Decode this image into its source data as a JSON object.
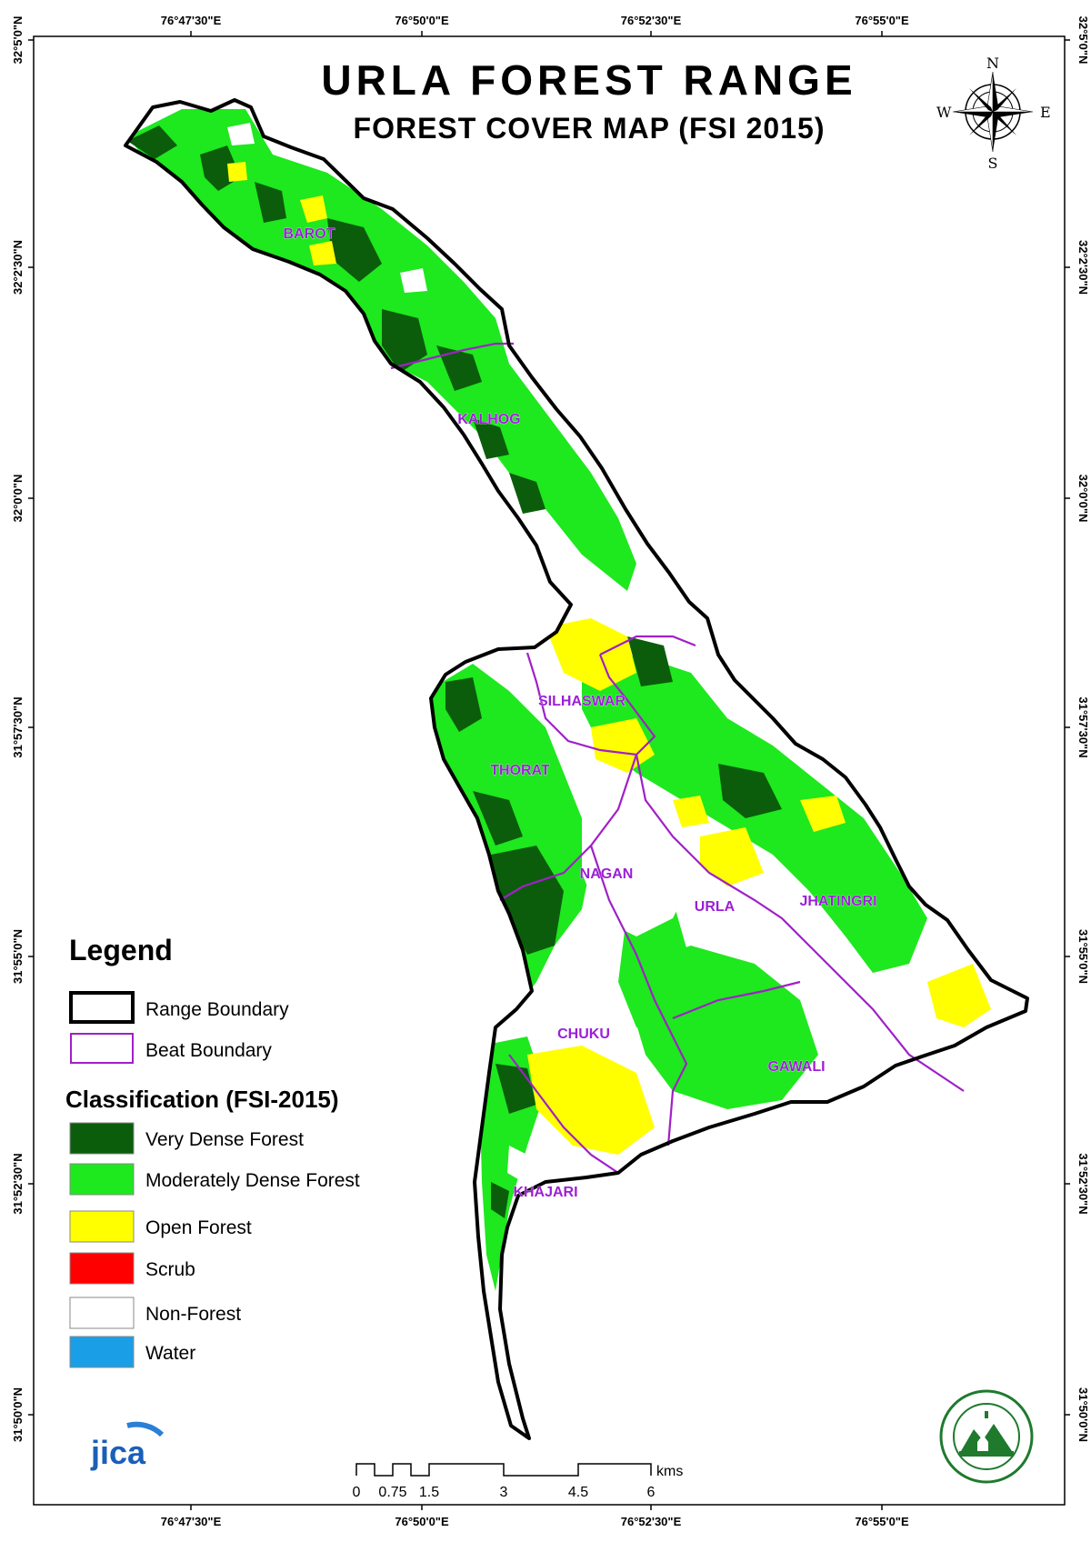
{
  "title": "URLA FOREST RANGE",
  "subtitle": "FOREST COVER MAP (FSI 2015)",
  "compass": {
    "icon": "compass-rose-icon",
    "n": "N",
    "s": "S",
    "e": "E",
    "w": "W"
  },
  "graticule": {
    "top": [
      "76°47'30\"E",
      "76°50'0\"E",
      "76°52'30\"E",
      "76°55'0\"E"
    ],
    "bottom": [
      "76°47'30\"E",
      "76°50'0\"E",
      "76°52'30\"E",
      "76°55'0\"E"
    ],
    "left": [
      "32°5'0\"N",
      "32°2'30\"N",
      "32°0'0\"N",
      "31°57'30\"N",
      "31°55'0\"N",
      "31°52'30\"N",
      "31°50'0\"N"
    ],
    "right": [
      "32°5'0\"N",
      "32°2'30\"N",
      "32°0'0\"N",
      "31°57'30\"N",
      "31°55'0\"N",
      "31°52'30\"N",
      "31°50'0\"N"
    ]
  },
  "beats": [
    "BAROT",
    "KALHOG",
    "SILHASWAR",
    "THORAT",
    "NAGAN",
    "URLA",
    "JHATINGRI",
    "CHUKU",
    "GAWALI",
    "KHAJARI"
  ],
  "legend": {
    "heading": "Legend",
    "boundaries": [
      {
        "label": "Range Boundary",
        "color": "#000000"
      },
      {
        "label": "Beat Boundary",
        "color": "#a020c8"
      }
    ],
    "classification_heading": "Classification (FSI-2015)",
    "classes": [
      {
        "label": "Very Dense Forest",
        "color": "#0b5d0b"
      },
      {
        "label": "Moderately Dense Forest",
        "color": "#1ee81e"
      },
      {
        "label": "Open Forest",
        "color": "#ffff00"
      },
      {
        "label": "Scrub",
        "color": "#ff0000"
      },
      {
        "label": "Non-Forest",
        "color": "#ffffff"
      },
      {
        "label": "Water",
        "color": "#1a9ee6"
      }
    ]
  },
  "scale_bar": {
    "ticks": [
      "0",
      "0.75",
      "1.5",
      "3",
      "4.5",
      "6"
    ],
    "unit": "kms"
  },
  "logos": {
    "jica": {
      "icon": "jica-logo-icon",
      "text": "jica"
    },
    "forest_department": {
      "icon": "forest-department-seal-icon"
    }
  }
}
